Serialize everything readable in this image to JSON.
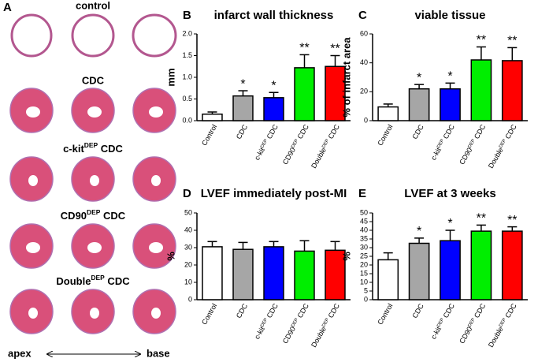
{
  "panel_a": {
    "letter": "A",
    "groups": [
      "control",
      "CDC",
      "c-kitDEP CDC",
      "CD90DEP CDC",
      "DoubleDEP CDC"
    ],
    "apex": "apex",
    "base": "base"
  },
  "chart_data": [
    {
      "type": "bar",
      "letter": "B",
      "title": "infarct wall thickness",
      "y_label": "mm",
      "categories": [
        "Control",
        "CDC",
        "c-kitDEP CDC",
        "CD90DEP CDC",
        "DoubleDEP CDC"
      ],
      "values": [
        0.15,
        0.57,
        0.53,
        1.22,
        1.25
      ],
      "errors": [
        0.05,
        0.12,
        0.12,
        0.3,
        0.25
      ],
      "colors": [
        "#ffffff",
        "#a6a6a6",
        "#0000ff",
        "#00ee00",
        "#ff0000"
      ],
      "significance": [
        null,
        "*",
        "*",
        "**",
        "**"
      ],
      "ylim": [
        0,
        2
      ],
      "yticks": [
        {
          "value": 0,
          "label": "0.0"
        },
        0.5,
        {
          "value": 1,
          "label": "1.0"
        },
        1.5,
        {
          "value": 2,
          "label": "2.0"
        }
      ]
    },
    {
      "type": "bar",
      "letter": "C",
      "title": "viable tissue",
      "y_label": "% of infarct area",
      "categories": [
        "Control",
        "CDC",
        "c-kitDEP CDC",
        "CD90DEP CDC",
        "DoubleDEP CDC"
      ],
      "values": [
        9.5,
        22,
        22,
        42,
        41.5
      ],
      "errors": [
        2,
        3,
        4,
        9,
        9
      ],
      "colors": [
        "#ffffff",
        "#a6a6a6",
        "#0000ff",
        "#00ee00",
        "#ff0000"
      ],
      "significance": [
        null,
        "*",
        "*",
        "**",
        "**"
      ],
      "ylim": [
        0,
        60
      ],
      "yticks": [
        0,
        20,
        40,
        60
      ]
    },
    {
      "type": "bar",
      "letter": "D",
      "title": "LVEF immediately post-MI",
      "y_label": "%",
      "categories": [
        "Control",
        "CDC",
        "c-kitDEP CDC",
        "CD90DEP CDC",
        "DoubleDEP CDC"
      ],
      "values": [
        30.5,
        29,
        30.5,
        28,
        28.5
      ],
      "errors": [
        3,
        4,
        3,
        6,
        5
      ],
      "colors": [
        "#ffffff",
        "#a6a6a6",
        "#0000ff",
        "#00ee00",
        "#ff0000"
      ],
      "significance": [
        null,
        null,
        null,
        null,
        null
      ],
      "ylim": [
        0,
        50
      ],
      "yticks": [
        0,
        10,
        20,
        30,
        40,
        50
      ]
    },
    {
      "type": "bar",
      "letter": "E",
      "title": "LVEF at 3 weeks",
      "y_label": "%",
      "categories": [
        "Control",
        "CDC",
        "c-kitDEP CDC",
        "CD90DEP CDC",
        "DoubleDEP CDC"
      ],
      "values": [
        23,
        32.5,
        34,
        39.5,
        39.5
      ],
      "errors": [
        4,
        3,
        6,
        3.5,
        2.5
      ],
      "colors": [
        "#ffffff",
        "#a6a6a6",
        "#0000ff",
        "#00ee00",
        "#ff0000"
      ],
      "significance": [
        null,
        "*",
        "*",
        "**",
        "**"
      ],
      "ylim": [
        0,
        50
      ],
      "yticks": [
        0,
        5,
        10,
        15,
        20,
        25,
        30,
        35,
        40,
        45,
        50
      ]
    }
  ]
}
